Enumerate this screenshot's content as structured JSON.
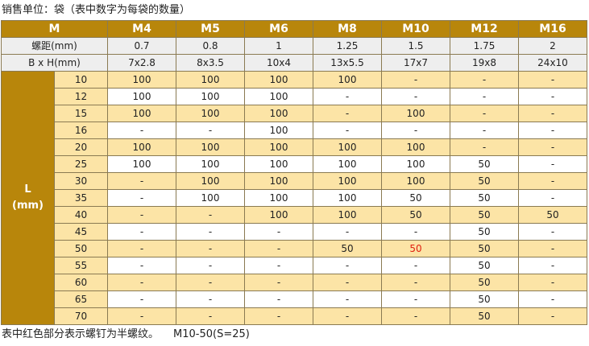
{
  "caption_top": "销售单位：袋（表中数字为每袋的数量）",
  "caption_bottom": "表中红色部分表示螺钉为半螺纹。",
  "caption_bottom_note": "M10-50(S=25)",
  "header": {
    "corner": "M",
    "sizes": [
      "M4",
      "M5",
      "M6",
      "M8",
      "M10",
      "M12",
      "M16"
    ]
  },
  "pitch": {
    "label": "螺距(mm)",
    "values": [
      "0.7",
      "0.8",
      "1",
      "1.25",
      "1.5",
      "1.75",
      "2"
    ]
  },
  "bxh": {
    "label": "B x H(mm)",
    "values": [
      "7x2.8",
      "8x3.5",
      "10x4",
      "13x5.5",
      "17x7",
      "19x8",
      "24x10"
    ]
  },
  "length": {
    "label_line1": "L",
    "label_line2": "(mm)",
    "rows": [
      {
        "L": "10",
        "values": [
          "100",
          "100",
          "100",
          "100",
          "-",
          "-",
          "-"
        ]
      },
      {
        "L": "12",
        "values": [
          "100",
          "100",
          "100",
          "-",
          "-",
          "-",
          "-"
        ]
      },
      {
        "L": "15",
        "values": [
          "100",
          "100",
          "100",
          "-",
          "100",
          "-",
          "-"
        ]
      },
      {
        "L": "16",
        "values": [
          "-",
          "-",
          "100",
          "-",
          "-",
          "-",
          "-"
        ]
      },
      {
        "L": "20",
        "values": [
          "100",
          "100",
          "100",
          "100",
          "100",
          "-",
          "-"
        ]
      },
      {
        "L": "25",
        "values": [
          "100",
          "100",
          "100",
          "100",
          "100",
          "50",
          "-"
        ]
      },
      {
        "L": "30",
        "values": [
          "-",
          "100",
          "100",
          "100",
          "100",
          "50",
          "-"
        ]
      },
      {
        "L": "35",
        "values": [
          "-",
          "100",
          "100",
          "100",
          "50",
          "50",
          "-"
        ]
      },
      {
        "L": "40",
        "values": [
          "-",
          "-",
          "100",
          "100",
          "50",
          "50",
          "50"
        ]
      },
      {
        "L": "45",
        "values": [
          "-",
          "-",
          "-",
          "-",
          "-",
          "50",
          "-"
        ]
      },
      {
        "L": "50",
        "values": [
          "-",
          "-",
          "-",
          "50",
          "50",
          "50",
          "-"
        ]
      },
      {
        "L": "55",
        "values": [
          "-",
          "-",
          "-",
          "-",
          "-",
          "50",
          "-"
        ]
      },
      {
        "L": "60",
        "values": [
          "-",
          "-",
          "-",
          "-",
          "-",
          "50",
          "-"
        ]
      },
      {
        "L": "65",
        "values": [
          "-",
          "-",
          "-",
          "-",
          "-",
          "50",
          "-"
        ]
      },
      {
        "L": "70",
        "values": [
          "-",
          "-",
          "-",
          "-",
          "-",
          "50",
          "-"
        ]
      }
    ]
  },
  "half_thread_cells": [
    {
      "row": 10,
      "col": 4
    }
  ],
  "colors": {
    "header_gold": "#b8860b",
    "band_yellow": "#fce4a6",
    "half_thread_red": "#e02010"
  }
}
